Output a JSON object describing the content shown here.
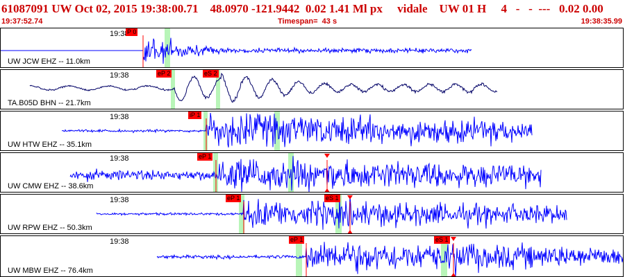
{
  "header": {
    "title": "61087091 UW Oct 02, 2015 19:38:00.71    48.0970 -121.9442  0.02 1.41 Ml px     vidale    UW 01 H     4   -   -  ---   0.02 0.00",
    "start_time": "19:37:52.74",
    "timespan": "Timespan=  43 s",
    "end_time": "19:38:35.99"
  },
  "colors": {
    "header_text": "#cc0000",
    "trace_blue": "#0000ff",
    "trace_dark": "#000055",
    "pick_label_bg": "#ff0000",
    "pick_line": "#ff0000",
    "window_green": "#b8f5b8",
    "panel_border": "#000000"
  },
  "traces": [
    {
      "station": "UW JCW EHZ -- 11.0km",
      "time_label": "19:38",
      "picks": [
        {
          "label": "P 0",
          "type": "P"
        }
      ],
      "style": "dark-baseline"
    },
    {
      "station": "TA.B05D BHN -- 21.7km",
      "time_label": "19:38",
      "picks": [
        {
          "label": "eP 2",
          "type": "P"
        },
        {
          "label": "eS 2",
          "type": "S"
        }
      ],
      "style": "navy"
    },
    {
      "station": "UW HTW EHZ -- 35.1km",
      "time_label": "19:38",
      "picks": [
        {
          "label": "iP 1",
          "type": "P"
        }
      ],
      "style": "blue"
    },
    {
      "station": "UW CMW EHZ -- 38.6km",
      "time_label": "19:38",
      "picks": [
        {
          "label": "eP 1",
          "type": "P"
        }
      ],
      "style": "blue"
    },
    {
      "station": "UW RPW EHZ -- 50.3km",
      "time_label": "19:38",
      "picks": [
        {
          "label": "eP 1",
          "type": "P"
        },
        {
          "label": "eS 1",
          "type": "S"
        }
      ],
      "style": "blue"
    },
    {
      "station": "UW MBW EHZ -- 76.4km",
      "time_label": "19:38",
      "picks": [
        {
          "label": "eP 1",
          "type": "P"
        },
        {
          "label": "eS 1",
          "type": "S"
        }
      ],
      "style": "blue"
    }
  ]
}
